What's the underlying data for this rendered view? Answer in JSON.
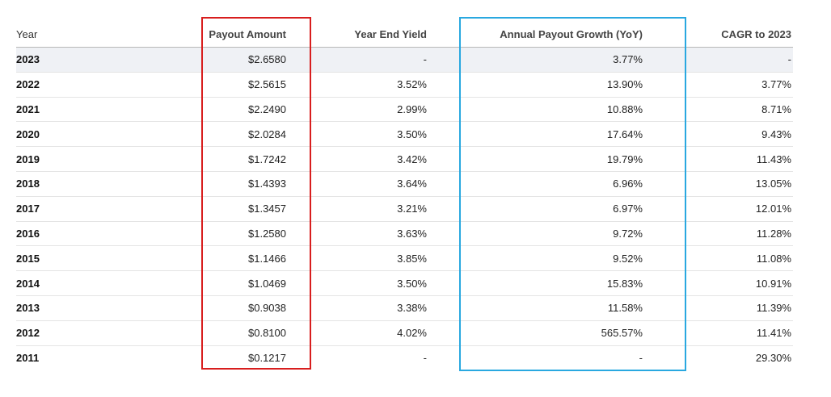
{
  "table": {
    "headers": {
      "year": "Year",
      "payout": "Payout Amount",
      "yield": "Year End Yield",
      "growth": "Annual Payout Growth (YoY)",
      "cagr": "CAGR to 2023"
    },
    "rows": [
      {
        "year": "2023",
        "payout": "$2.6580",
        "yield": "-",
        "growth": "3.77%",
        "cagr": "-"
      },
      {
        "year": "2022",
        "payout": "$2.5615",
        "yield": "3.52%",
        "growth": "13.90%",
        "cagr": "3.77%"
      },
      {
        "year": "2021",
        "payout": "$2.2490",
        "yield": "2.99%",
        "growth": "10.88%",
        "cagr": "8.71%"
      },
      {
        "year": "2020",
        "payout": "$2.0284",
        "yield": "3.50%",
        "growth": "17.64%",
        "cagr": "9.43%"
      },
      {
        "year": "2019",
        "payout": "$1.7242",
        "yield": "3.42%",
        "growth": "19.79%",
        "cagr": "11.43%"
      },
      {
        "year": "2018",
        "payout": "$1.4393",
        "yield": "3.64%",
        "growth": "6.96%",
        "cagr": "13.05%"
      },
      {
        "year": "2017",
        "payout": "$1.3457",
        "yield": "3.21%",
        "growth": "6.97%",
        "cagr": "12.01%"
      },
      {
        "year": "2016",
        "payout": "$1.2580",
        "yield": "3.63%",
        "growth": "9.72%",
        "cagr": "11.28%"
      },
      {
        "year": "2015",
        "payout": "$1.1466",
        "yield": "3.85%",
        "growth": "9.52%",
        "cagr": "11.08%"
      },
      {
        "year": "2014",
        "payout": "$1.0469",
        "yield": "3.50%",
        "growth": "15.83%",
        "cagr": "10.91%"
      },
      {
        "year": "2013",
        "payout": "$0.9038",
        "yield": "3.38%",
        "growth": "11.58%",
        "cagr": "11.39%"
      },
      {
        "year": "2012",
        "payout": "$0.8100",
        "yield": "4.02%",
        "growth": "565.57%",
        "cagr": "11.41%"
      },
      {
        "year": "2011",
        "payout": "$0.1217",
        "yield": "-",
        "growth": "-",
        "cagr": "29.30%"
      }
    ]
  },
  "highlights": {
    "payout_box_color": "#d81e1e",
    "growth_box_color": "#29a8e0",
    "first_row_background": "#eff1f5"
  }
}
